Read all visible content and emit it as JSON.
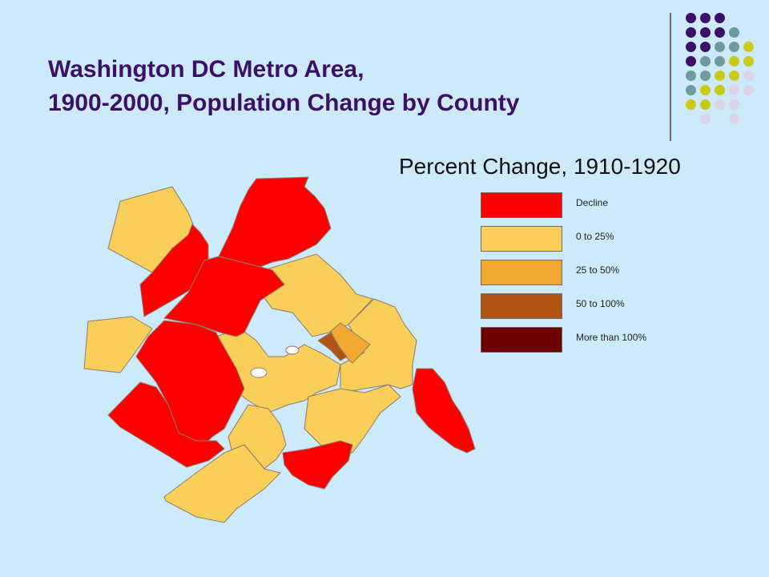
{
  "slide": {
    "title_line1": "Washington DC Metro Area,",
    "title_line2": "1900-2000, Population Change by County"
  },
  "map": {
    "subtitle": "Percent Change, 1910-1920",
    "colors": {
      "decline": "#ff0000",
      "p0_25": "#f9cf5a",
      "p25_50": "#f0a830",
      "p50_100": "#b05414",
      "p100_plus": "#6e0000",
      "water": "#cdeafb"
    },
    "legend": [
      {
        "label": "Decline",
        "color": "#ff0000"
      },
      {
        "label": "0 to 25%",
        "color": "#f9cf5a"
      },
      {
        "label": "25 to 50%",
        "color": "#f0a830"
      },
      {
        "label": "50 to 100%",
        "color": "#b05414"
      },
      {
        "label": "More than 100%",
        "color": "#6e0000"
      }
    ]
  },
  "decoration": {
    "dot_colors": [
      "#3b1066",
      "#6e9a9e",
      "#c9c91a",
      "#dcd3e6"
    ]
  }
}
